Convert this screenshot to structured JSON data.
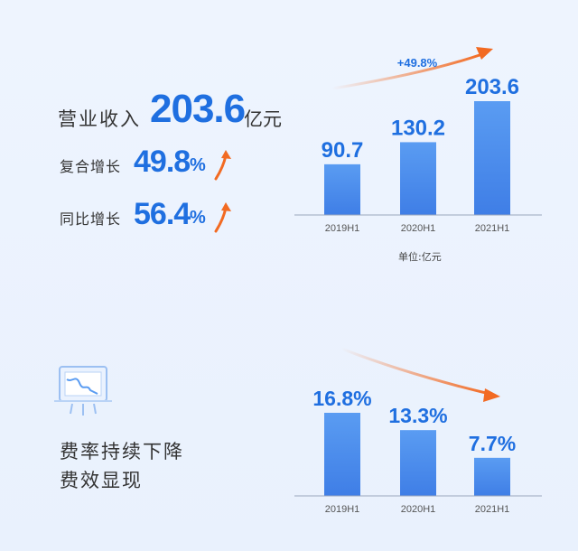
{
  "revenue": {
    "label": "营业收入",
    "value": "203.6",
    "unit": "亿元"
  },
  "cagr": {
    "label": "复合增长",
    "value": "49.8",
    "pct": "%"
  },
  "yoy": {
    "label": "同比增长",
    "value": "56.4",
    "pct": "%"
  },
  "chart_top_note": "单位:亿元",
  "slogan": {
    "line1": "费率持续下降",
    "line2": "费效显现"
  },
  "colors": {
    "accent": "#1f6fe0",
    "arrow": "#f26a22",
    "bar_top": "#5a9cf2",
    "bar_bottom": "#3f7ee6"
  },
  "chart_data": [
    {
      "type": "bar",
      "categories": [
        "2019H1",
        "2020H1",
        "2021H1"
      ],
      "values": [
        90.7,
        130.2,
        203.6
      ],
      "value_labels": [
        "90.7",
        "130.2",
        "203.6"
      ],
      "annotation": "+49.8%",
      "unit_label": "单位:亿元",
      "grid": false
    },
    {
      "type": "bar",
      "categories": [
        "2019H1",
        "2020H1",
        "2021H1"
      ],
      "values": [
        16.8,
        13.3,
        7.7
      ],
      "value_labels": [
        "16.8%",
        "13.3%",
        "7.7%"
      ],
      "grid": false
    }
  ]
}
